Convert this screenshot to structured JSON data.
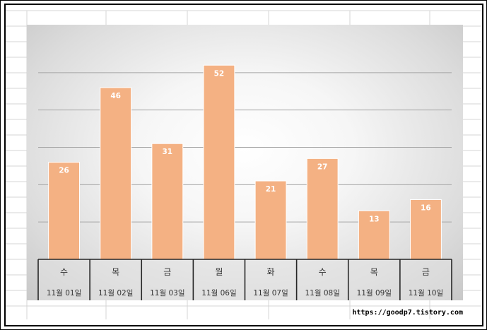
{
  "chart_data": {
    "type": "bar",
    "categories": [
      {
        "weekday": "수",
        "date": "11월 01일"
      },
      {
        "weekday": "목",
        "date": "11월 02일"
      },
      {
        "weekday": "금",
        "date": "11월 03일"
      },
      {
        "weekday": "월",
        "date": "11월 06일"
      },
      {
        "weekday": "화",
        "date": "11월 07일"
      },
      {
        "weekday": "수",
        "date": "11월 08일"
      },
      {
        "weekday": "목",
        "date": "11월 09일"
      },
      {
        "weekday": "금",
        "date": "11월 10일"
      }
    ],
    "values": [
      26,
      46,
      31,
      52,
      21,
      27,
      13,
      16
    ],
    "ylim": [
      0,
      60
    ],
    "gridlines": [
      10,
      20,
      30,
      40,
      50
    ],
    "bar_color": "#f4b183",
    "data_labels": true,
    "grid": true,
    "legend": "none"
  },
  "footer": {
    "credit": "https://goodp7.tistory.com"
  }
}
